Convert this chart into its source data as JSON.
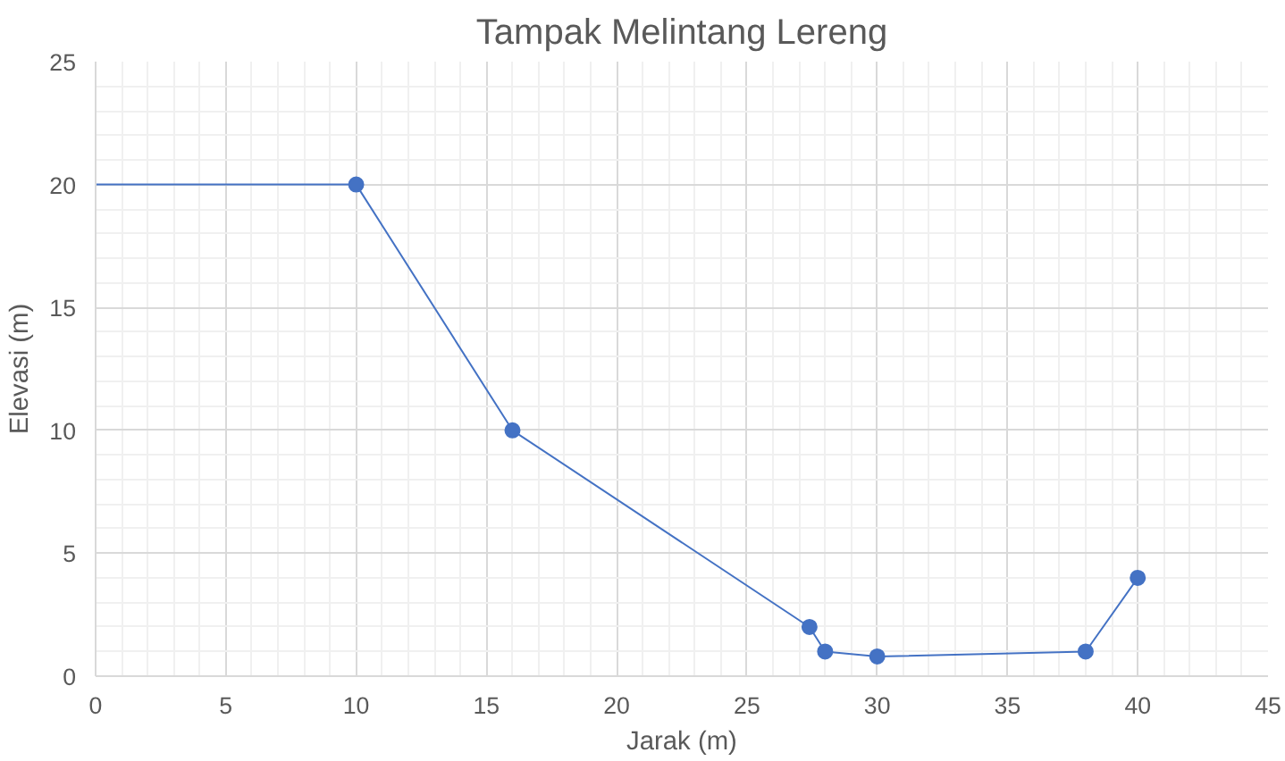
{
  "chart_data": {
    "type": "line",
    "title": "Tampak Melintang Lereng",
    "xlabel": "Jarak (m)",
    "ylabel": "Elevasi (m)",
    "xlim": [
      0,
      45
    ],
    "xticks": [
      0,
      5,
      10,
      15,
      20,
      25,
      30,
      35,
      40,
      45
    ],
    "ylim": [
      0,
      25
    ],
    "yticks": [
      0,
      5,
      10,
      15,
      20,
      25
    ],
    "grid": true,
    "series": [
      {
        "color": "#4472c4",
        "x": [
          0,
          10
        ],
        "values": [
          20,
          20
        ]
      },
      {
        "marker": "circle",
        "color": "#4472c4",
        "x": [
          10,
          16,
          27.4,
          28,
          30,
          38,
          40
        ],
        "values": [
          20,
          10,
          2,
          1,
          0.8,
          1,
          4
        ]
      }
    ]
  }
}
